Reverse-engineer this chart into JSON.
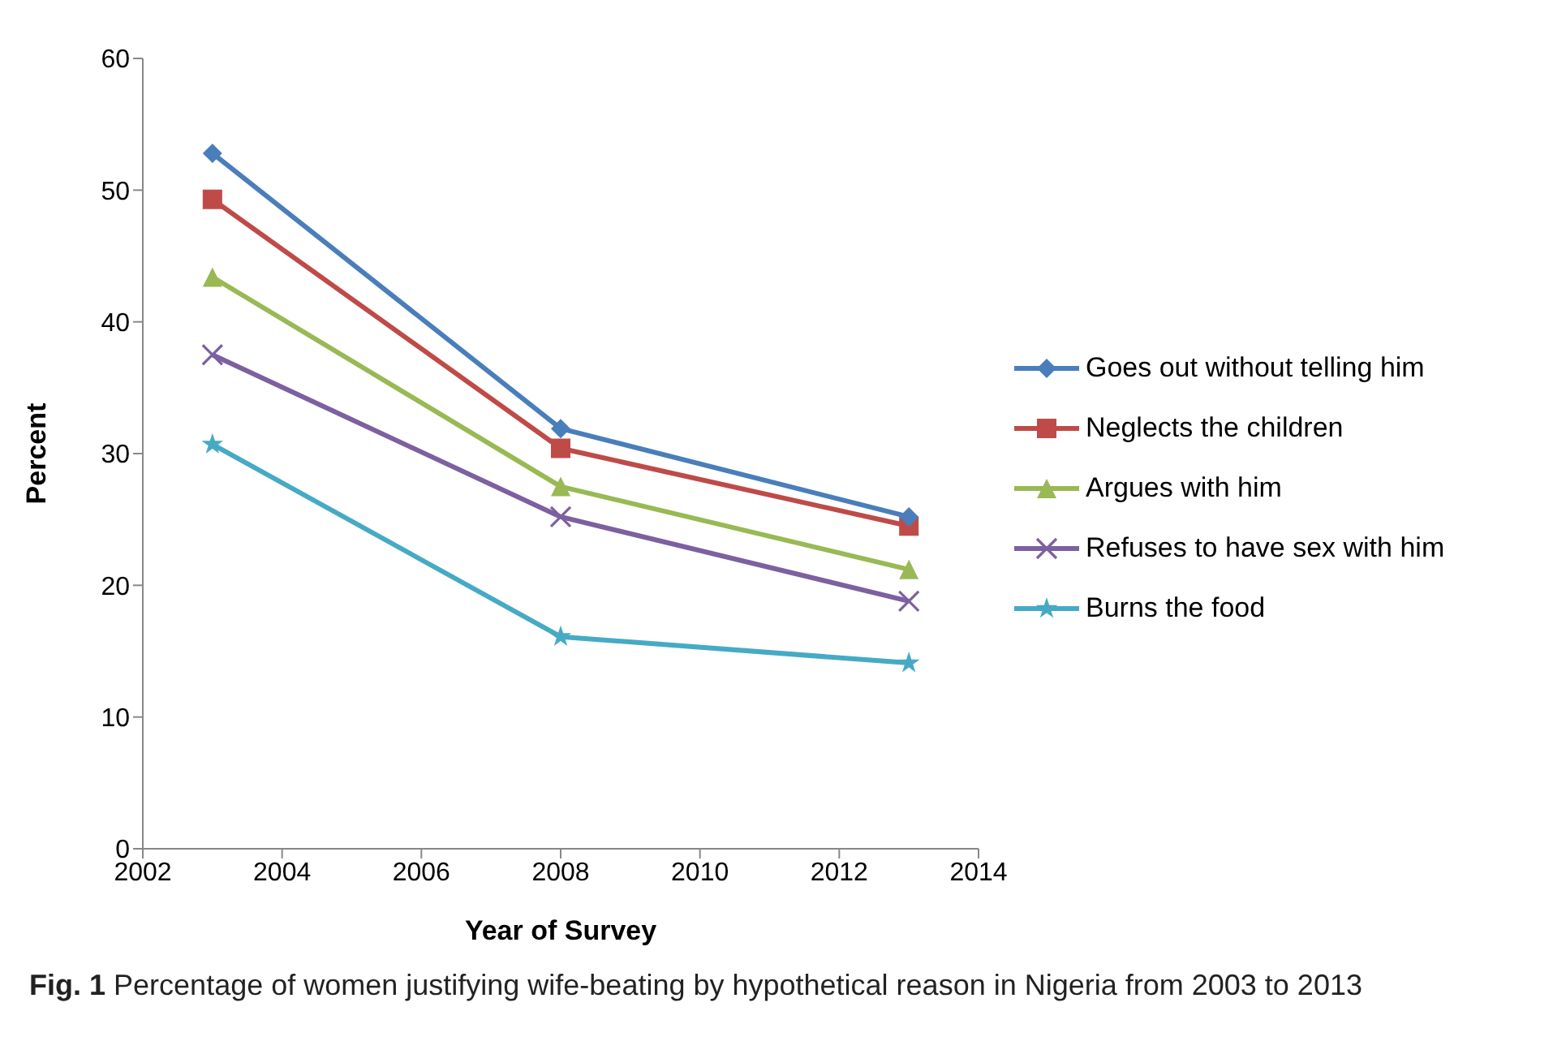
{
  "chart_data": {
    "type": "line",
    "xlabel": "Year of Survey",
    "ylabel": "Percent",
    "x": [
      2003,
      2008,
      2013
    ],
    "xlim": [
      2002,
      2014
    ],
    "xticks": [
      2002,
      2004,
      2006,
      2008,
      2010,
      2012,
      2014
    ],
    "ylim": [
      0,
      60
    ],
    "yticks": [
      0,
      10,
      20,
      30,
      40,
      50,
      60
    ],
    "grid": false,
    "legend": "right",
    "line_style": "solid",
    "series": [
      {
        "name": "Goes out without telling him",
        "color": "#4a7ebb",
        "marker": "diamond",
        "values": [
          52.8,
          31.9,
          25.2
        ]
      },
      {
        "name": "Neglects the children",
        "color": "#be4b48",
        "marker": "square",
        "values": [
          49.3,
          30.4,
          24.5
        ]
      },
      {
        "name": "Argues with him",
        "color": "#98b954",
        "marker": "triangle",
        "values": [
          43.4,
          27.5,
          21.2
        ]
      },
      {
        "name": "Refuses to have sex with him",
        "color": "#7d60a0",
        "marker": "cross",
        "values": [
          37.5,
          25.2,
          18.8
        ]
      },
      {
        "name": "Burns the food",
        "color": "#46aac5",
        "marker": "star",
        "values": [
          30.7,
          16.1,
          14.1
        ]
      }
    ],
    "annotations": [
      "Fig. 1 Percentage of women justifying wife-beating by hypothetical reason in Nigeria from 2003 to 2013"
    ]
  }
}
